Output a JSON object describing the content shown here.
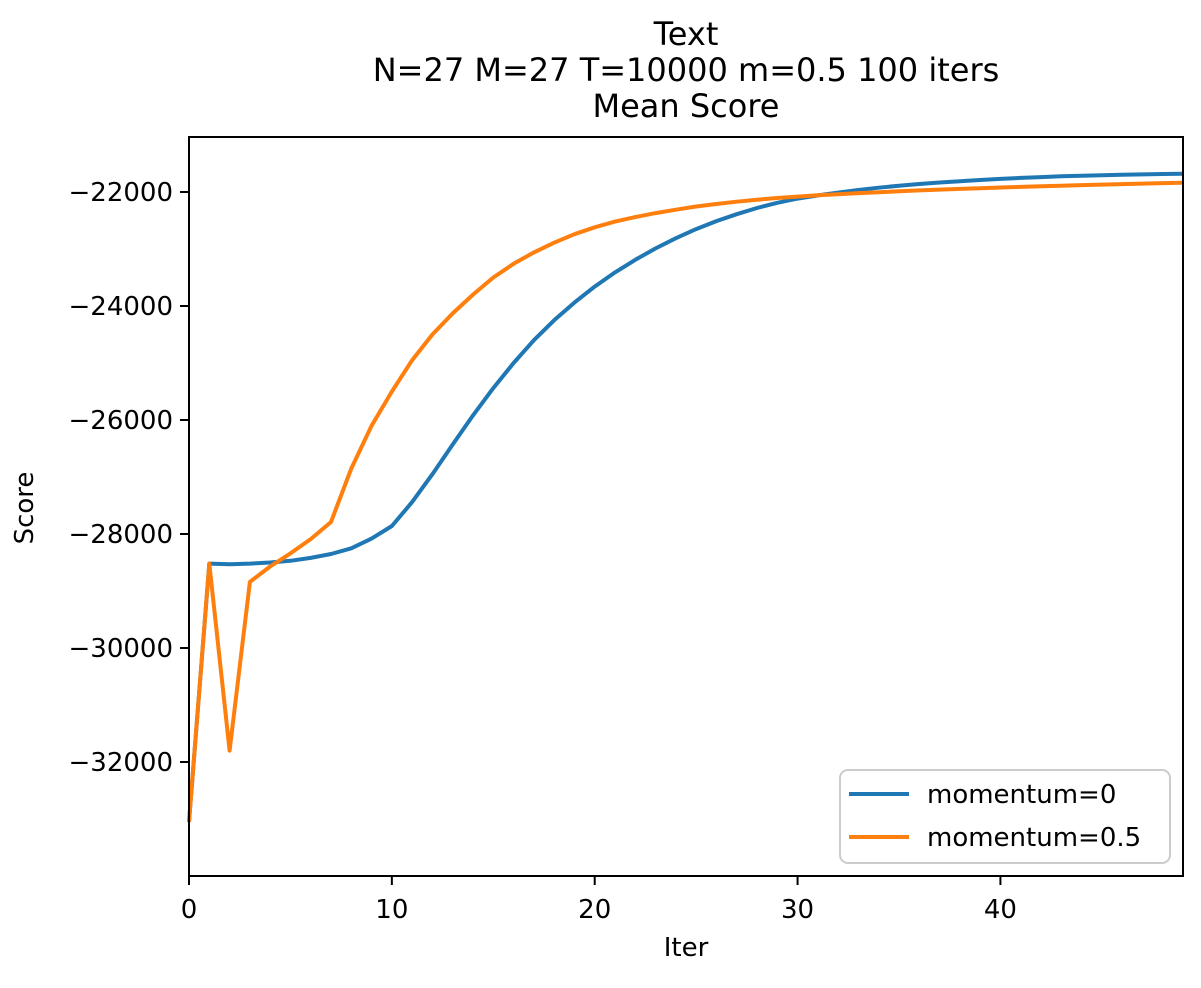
{
  "figure": {
    "background_color": "#ffffff",
    "axis_color": "#000000",
    "text_color": "#000000",
    "legend_border_color": "#cccccc",
    "legend_background_color": "#ffffff"
  },
  "chart_data": {
    "type": "line",
    "title_lines": [
      "Text",
      "N=27 M=27 T=10000 m=0.5 100 iters",
      "Mean Score"
    ],
    "xlabel": "Iter",
    "ylabel": "Score",
    "xlim": [
      0,
      49
    ],
    "ylim": [
      -34000,
      -21035
    ],
    "grid": false,
    "legend_position": "lower right",
    "xticks": [
      0,
      10,
      20,
      30,
      40
    ],
    "xtick_labels": [
      "0",
      "10",
      "20",
      "30",
      "40"
    ],
    "yticks": [
      -22000,
      -24000,
      -26000,
      -28000,
      -30000,
      -32000
    ],
    "ytick_labels": [
      "−22000",
      "−24000",
      "−26000",
      "−28000",
      "−30000",
      "−32000"
    ],
    "x": [
      0,
      1,
      2,
      3,
      4,
      5,
      6,
      7,
      8,
      9,
      10,
      11,
      12,
      13,
      14,
      15,
      16,
      17,
      18,
      19,
      20,
      21,
      22,
      23,
      24,
      25,
      26,
      27,
      28,
      29,
      30,
      31,
      32,
      33,
      34,
      35,
      36,
      37,
      38,
      39,
      40,
      41,
      42,
      43,
      44,
      45,
      46,
      47,
      48,
      49
    ],
    "series": [
      {
        "name": "momentum=0",
        "color": "#1f77b4",
        "values": [
          -33050,
          -28520,
          -28530,
          -28520,
          -28500,
          -28470,
          -28420,
          -28350,
          -28250,
          -28080,
          -27860,
          -27440,
          -26950,
          -26430,
          -25920,
          -25440,
          -25000,
          -24600,
          -24250,
          -23940,
          -23660,
          -23410,
          -23190,
          -22990,
          -22810,
          -22650,
          -22510,
          -22390,
          -22280,
          -22190,
          -22115,
          -22060,
          -22010,
          -21965,
          -21925,
          -21890,
          -21860,
          -21833,
          -21810,
          -21789,
          -21770,
          -21753,
          -21738,
          -21725,
          -21714,
          -21705,
          -21697,
          -21691,
          -21685,
          -21680
        ]
      },
      {
        "name": "momentum=0.5",
        "color": "#ff7f0e",
        "values": [
          -33050,
          -28520,
          -31800,
          -28840,
          -28570,
          -28340,
          -28090,
          -27790,
          -26850,
          -26100,
          -25500,
          -24950,
          -24500,
          -24130,
          -23800,
          -23500,
          -23260,
          -23060,
          -22890,
          -22740,
          -22620,
          -22520,
          -22440,
          -22370,
          -22310,
          -22255,
          -22210,
          -22170,
          -22135,
          -22105,
          -22080,
          -22058,
          -22038,
          -22020,
          -22003,
          -21987,
          -21972,
          -21958,
          -21945,
          -21933,
          -21921,
          -21910,
          -21899,
          -21889,
          -21879,
          -21870,
          -21861,
          -21852,
          -21844,
          -21836
        ]
      }
    ]
  }
}
